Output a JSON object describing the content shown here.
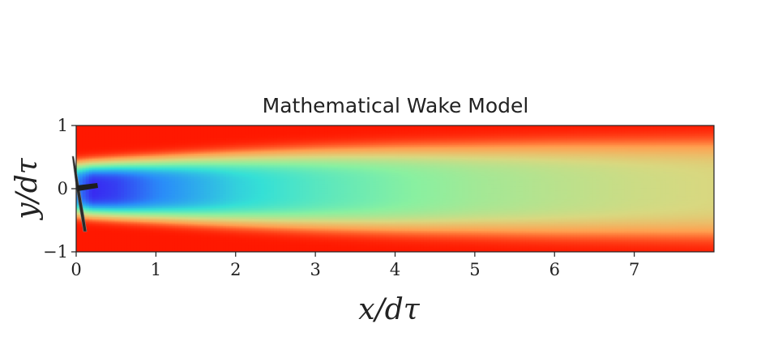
{
  "chart_data": {
    "type": "heatmap",
    "title": "Mathematical Wake Model",
    "xlabel": "x/dτ",
    "ylabel": "y/dτ",
    "xlim": [
      0,
      8
    ],
    "ylim": [
      -1,
      1
    ],
    "x_ticks": [
      0,
      1,
      2,
      3,
      4,
      5,
      6,
      7
    ],
    "y_ticks": [
      -1,
      0,
      1
    ],
    "grid": false,
    "legend": "none",
    "colormap": "rainbow",
    "colormap_stops": [
      "#3a1cf0",
      "#2a8ef8",
      "#35e0d6",
      "#8af0a0",
      "#d8d880",
      "#ffa050",
      "#ff1800"
    ],
    "wake_centerline_velocity_deficit": {
      "x": [
        0.2,
        0.5,
        1,
        2,
        3,
        4,
        5,
        6,
        7,
        8
      ],
      "relative_level": [
        0.98,
        0.95,
        0.85,
        0.7,
        0.6,
        0.52,
        0.45,
        0.4,
        0.36,
        0.33
      ]
    },
    "wake_half_width": {
      "x": [
        0,
        1,
        2,
        3,
        4,
        5,
        6,
        7,
        8
      ],
      "y": [
        0.36,
        0.42,
        0.48,
        0.53,
        0.57,
        0.6,
        0.63,
        0.65,
        0.67
      ]
    },
    "turbine": {
      "x": 0,
      "y": 0,
      "label": "turbine-icon"
    },
    "colors": {
      "free_stream": "#ff1800",
      "wake_core": "#3a1cf0",
      "axes_edge": "#222222"
    }
  }
}
